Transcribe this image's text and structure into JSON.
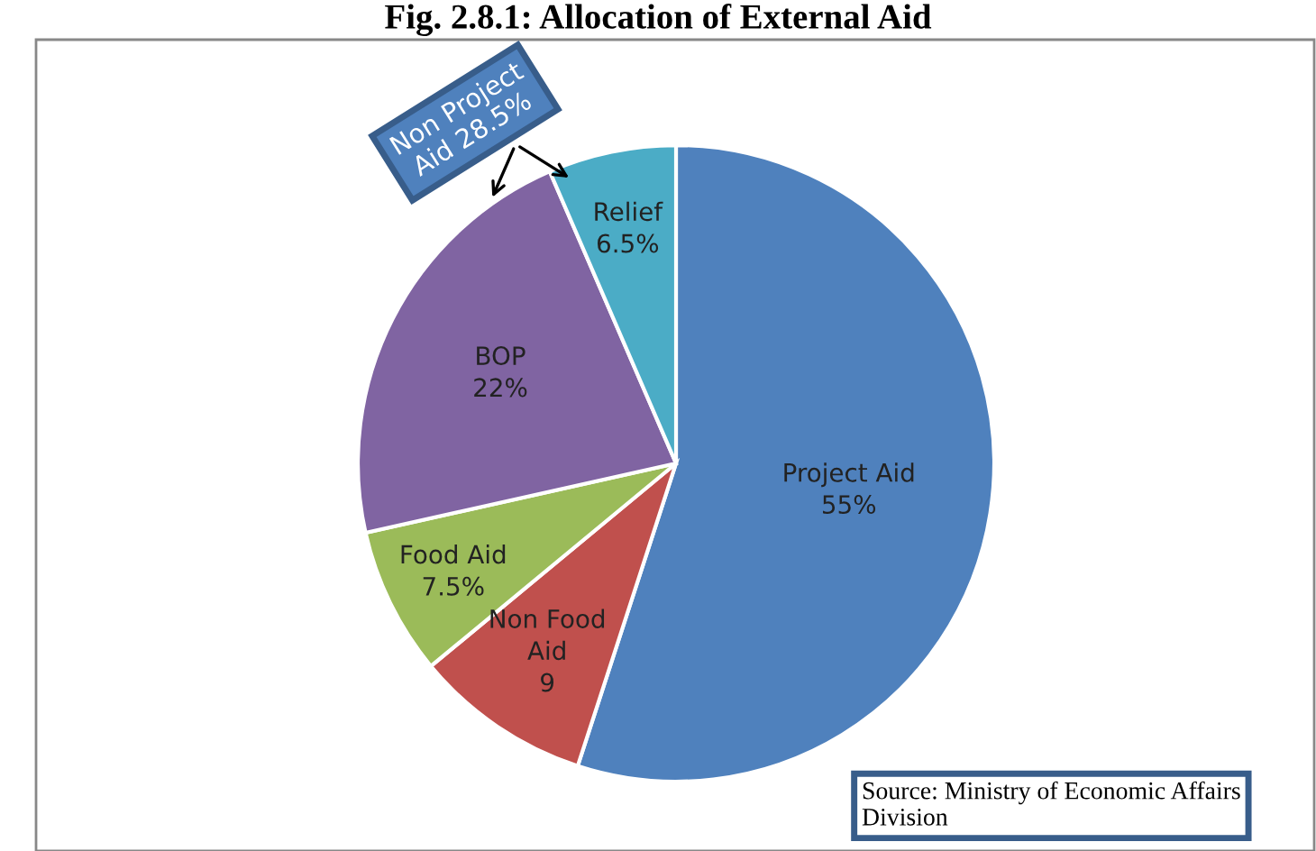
{
  "chart_data": {
    "type": "pie",
    "title": "Fig. 2.8.1: Allocation of External Aid",
    "categories": [
      "Project Aid",
      "Non Food Aid",
      "Food Aid",
      "BOP",
      "Relief"
    ],
    "values": [
      55,
      9,
      7.5,
      22,
      6.5
    ],
    "value_labels": [
      "55%",
      "9",
      "7.5%",
      "22%",
      "6.5%"
    ],
    "colors": [
      "#4f81bd",
      "#c0504d",
      "#9bbb59",
      "#8064a2",
      "#4bacc6"
    ],
    "annotations": [
      "Non Project Aid 28.5%",
      "Source: Ministry of Economic Affairs Division"
    ]
  }
}
